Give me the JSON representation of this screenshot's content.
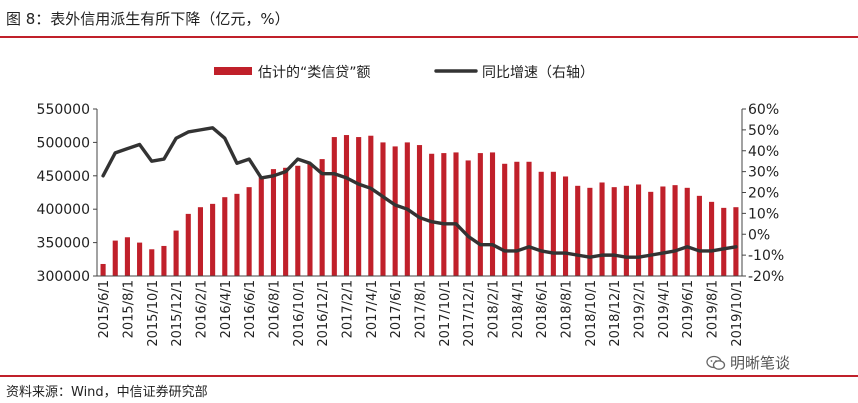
{
  "header": {
    "title": "图 8：表外信用派生有所下降（亿元，%）"
  },
  "footer": {
    "source": "资料来源：Wind，中信证券研究部",
    "watermark": "明晰笔谈"
  },
  "colors": {
    "bar": "#c0202a",
    "line": "#333333",
    "accent": "#c0202a"
  },
  "chart_data": {
    "type": "bar",
    "legend_position": "top-center",
    "grid": false,
    "categories": [
      "2015/6/1",
      "2015/7/1",
      "2015/8/1",
      "2015/9/1",
      "2015/10/1",
      "2015/11/1",
      "2015/12/1",
      "2016/1/1",
      "2016/2/1",
      "2016/3/1",
      "2016/4/1",
      "2016/5/1",
      "2016/6/1",
      "2016/7/1",
      "2016/8/1",
      "2016/9/1",
      "2016/10/1",
      "2016/11/1",
      "2016/12/1",
      "2017/1/1",
      "2017/2/1",
      "2017/3/1",
      "2017/4/1",
      "2017/5/1",
      "2017/6/1",
      "2017/7/1",
      "2017/8/1",
      "2017/9/1",
      "2017/10/1",
      "2017/11/1",
      "2017/12/1",
      "2018/1/1",
      "2018/2/1",
      "2018/3/1",
      "2018/4/1",
      "2018/5/1",
      "2018/6/1",
      "2018/7/1",
      "2018/8/1",
      "2018/9/1",
      "2018/10/1",
      "2018/11/1",
      "2018/12/1",
      "2019/1/1",
      "2019/2/1",
      "2019/3/1",
      "2019/4/1",
      "2019/5/1",
      "2019/6/1",
      "2019/7/1",
      "2019/8/1",
      "2019/9/1",
      "2019/10/1"
    ],
    "x_tick_labels": [
      "2015/6/1",
      "2015/8/1",
      "2015/10/1",
      "2015/12/1",
      "2016/2/1",
      "2016/4/1",
      "2016/6/1",
      "2016/8/1",
      "2016/10/1",
      "2016/12/1",
      "2017/2/1",
      "2017/4/1",
      "2017/6/1",
      "2017/8/1",
      "2017/10/1",
      "2017/12/1",
      "2018/2/1",
      "2018/4/1",
      "2018/6/1",
      "2018/8/1",
      "2018/10/1",
      "2018/12/1",
      "2019/2/1",
      "2019/4/1",
      "2019/6/1",
      "2019/8/1",
      "2019/10/1"
    ],
    "series": [
      {
        "name": "估计的“类信贷”额",
        "type": "bar",
        "axis": "left",
        "values": [
          318000,
          353000,
          358000,
          350000,
          340000,
          345000,
          368000,
          393000,
          403000,
          408000,
          418000,
          423000,
          433000,
          448000,
          460000,
          462000,
          465000,
          468000,
          475000,
          508000,
          511000,
          508000,
          510000,
          500000,
          494000,
          500000,
          496000,
          483000,
          484000,
          485000,
          473000,
          484000,
          485000,
          468000,
          471000,
          471000,
          456000,
          456000,
          449000,
          435000,
          432000,
          440000,
          433000,
          435000,
          437000,
          426000,
          434000,
          436000,
          432000,
          420000,
          411000,
          402000,
          403000
        ]
      },
      {
        "name": "同比增速（右轴）",
        "type": "line",
        "axis": "right",
        "values": [
          28,
          39,
          41,
          43,
          35,
          36,
          46,
          49,
          50,
          51,
          46,
          34,
          36,
          27,
          28,
          30,
          36,
          34,
          29,
          29,
          27,
          24,
          22,
          18,
          14,
          12,
          8,
          6,
          5,
          5,
          -1,
          -5,
          -5,
          -8,
          -8,
          -6,
          -8,
          -9,
          -9,
          -10,
          -11,
          -10,
          -10,
          -11,
          -11,
          -10,
          -9,
          -8,
          -6,
          -8,
          -8,
          -7,
          -6
        ]
      }
    ],
    "y_left": {
      "ylim": [
        300000,
        550000
      ],
      "ticks": [
        300000,
        350000,
        400000,
        450000,
        500000,
        550000
      ]
    },
    "y_right": {
      "ylim": [
        -20,
        60
      ],
      "ticks": [
        -20,
        -10,
        0,
        10,
        20,
        30,
        40,
        50,
        60
      ],
      "tick_labels": [
        "-20%",
        "-10%",
        "0%",
        "10%",
        "20%",
        "30%",
        "40%",
        "50%",
        "60%"
      ]
    }
  }
}
